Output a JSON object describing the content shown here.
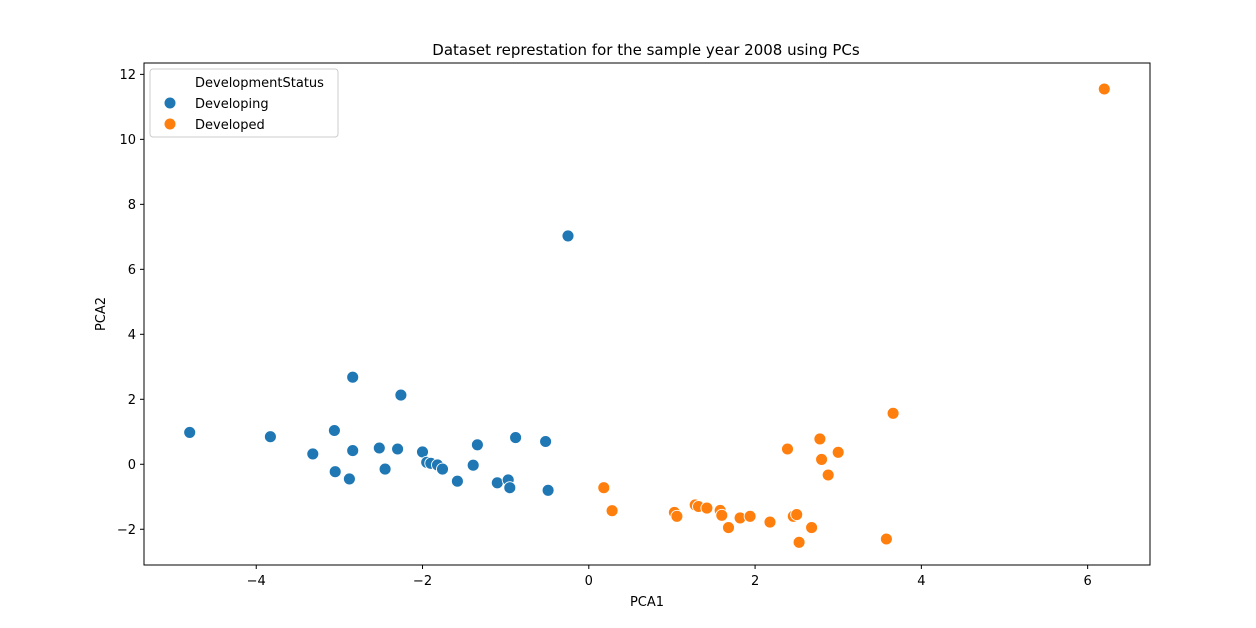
{
  "chart_data": {
    "type": "scatter",
    "title": "Dataset represtation for the sample year 2008 using PCs",
    "xlabel": "PCA1",
    "ylabel": "PCA2",
    "xlim": [
      -5.35,
      6.75
    ],
    "ylim": [
      -3.1,
      12.35
    ],
    "xticks": [
      -4,
      -2,
      0,
      2,
      4,
      6
    ],
    "yticks": [
      -2,
      0,
      2,
      4,
      6,
      8,
      10,
      12
    ],
    "xtick_labels": [
      "−4",
      "−2",
      "0",
      "2",
      "4",
      "6"
    ],
    "ytick_labels": [
      "−2",
      "0",
      "2",
      "4",
      "6",
      "8",
      "10",
      "12"
    ],
    "grid": false,
    "legend": {
      "title": "DevelopmentStatus",
      "placement": "top-left"
    },
    "series": [
      {
        "name": "Developing",
        "color": "#1f77b4",
        "points": [
          [
            -4.8,
            0.98
          ],
          [
            -3.83,
            0.85
          ],
          [
            -3.32,
            0.32
          ],
          [
            -3.06,
            1.04
          ],
          [
            -3.05,
            -0.23
          ],
          [
            -2.88,
            -0.45
          ],
          [
            -2.84,
            2.68
          ],
          [
            -2.84,
            0.42
          ],
          [
            -2.52,
            0.5
          ],
          [
            -2.45,
            -0.15
          ],
          [
            -2.3,
            0.47
          ],
          [
            -2.26,
            2.13
          ],
          [
            -2.0,
            0.38
          ],
          [
            -1.95,
            0.06
          ],
          [
            -1.9,
            0.03
          ],
          [
            -1.82,
            -0.02
          ],
          [
            -1.76,
            -0.15
          ],
          [
            -1.58,
            -0.52
          ],
          [
            -1.39,
            -0.03
          ],
          [
            -1.34,
            0.6
          ],
          [
            -1.1,
            -0.57
          ],
          [
            -0.97,
            -0.48
          ],
          [
            -0.95,
            -0.72
          ],
          [
            -0.88,
            0.82
          ],
          [
            -0.52,
            0.7
          ],
          [
            -0.49,
            -0.8
          ],
          [
            -0.25,
            7.03
          ]
        ]
      },
      {
        "name": "Developed",
        "color": "#ff7f0e",
        "points": [
          [
            0.18,
            -0.72
          ],
          [
            0.28,
            -1.43
          ],
          [
            1.03,
            -1.48
          ],
          [
            1.06,
            -1.6
          ],
          [
            1.28,
            -1.25
          ],
          [
            1.32,
            -1.3
          ],
          [
            1.42,
            -1.35
          ],
          [
            1.58,
            -1.42
          ],
          [
            1.6,
            -1.57
          ],
          [
            1.68,
            -1.95
          ],
          [
            1.82,
            -1.65
          ],
          [
            1.94,
            -1.6
          ],
          [
            2.18,
            -1.78
          ],
          [
            2.39,
            0.47
          ],
          [
            2.46,
            -1.6
          ],
          [
            2.5,
            -1.55
          ],
          [
            2.53,
            -2.4
          ],
          [
            2.68,
            -1.95
          ],
          [
            2.78,
            0.78
          ],
          [
            2.8,
            0.15
          ],
          [
            2.88,
            -0.33
          ],
          [
            3.0,
            0.37
          ],
          [
            3.58,
            -2.3
          ],
          [
            3.66,
            1.57
          ],
          [
            6.2,
            11.55
          ]
        ]
      }
    ]
  }
}
